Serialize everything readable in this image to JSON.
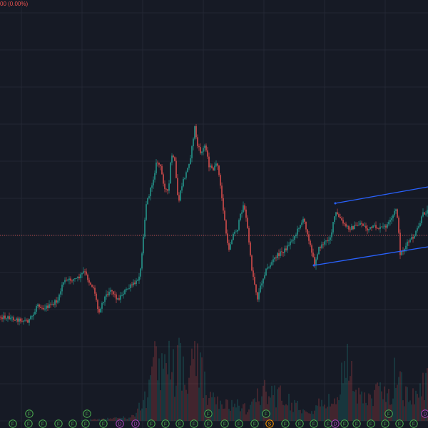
{
  "readout": {
    "change_text": "00 (0.00%)"
  },
  "colors": {
    "background": "#161a25",
    "grid": "#232733",
    "up": "#26a69a",
    "down": "#ef5350",
    "price_line": "#ef5350",
    "channel": "#2962ff",
    "marker_f": "#4caf50",
    "marker_d": "#ab47bc",
    "marker_s": "#ff9800"
  },
  "chart_data": {
    "type": "candlestick",
    "grid": true,
    "y_axis": "hidden",
    "x_axis": "hidden",
    "reference_line": {
      "style": "dotted",
      "description": "current price line"
    },
    "price_path_y": [
      [
        0,
        444
      ],
      [
        12,
        445
      ],
      [
        25,
        448
      ],
      [
        40,
        450
      ],
      [
        48,
        440
      ],
      [
        52,
        425
      ],
      [
        60,
        432
      ],
      [
        72,
        428
      ],
      [
        82,
        420
      ],
      [
        88,
        395
      ],
      [
        100,
        392
      ],
      [
        110,
        390
      ],
      [
        118,
        380
      ],
      [
        125,
        395
      ],
      [
        132,
        405
      ],
      [
        138,
        438
      ],
      [
        146,
        418
      ],
      [
        155,
        405
      ],
      [
        165,
        420
      ],
      [
        175,
        408
      ],
      [
        185,
        400
      ],
      [
        192,
        395
      ],
      [
        197,
        378
      ],
      [
        200,
        340
      ],
      [
        205,
        285
      ],
      [
        210,
        270
      ],
      [
        215,
        250
      ],
      [
        220,
        225
      ],
      [
        225,
        235
      ],
      [
        230,
        260
      ],
      [
        236,
        272
      ],
      [
        240,
        215
      ],
      [
        245,
        228
      ],
      [
        250,
        285
      ],
      [
        256,
        255
      ],
      [
        262,
        240
      ],
      [
        268,
        215
      ],
      [
        273,
        178
      ],
      [
        277,
        205
      ],
      [
        282,
        215
      ],
      [
        288,
        202
      ],
      [
        293,
        232
      ],
      [
        298,
        238
      ],
      [
        305,
        230
      ],
      [
        310,
        270
      ],
      [
        315,
        310
      ],
      [
        320,
        352
      ],
      [
        326,
        330
      ],
      [
        333,
        320
      ],
      [
        338,
        298
      ],
      [
        342,
        285
      ],
      [
        348,
        328
      ],
      [
        352,
        372
      ],
      [
        357,
        398
      ],
      [
        361,
        418
      ],
      [
        366,
        398
      ],
      [
        372,
        380
      ],
      [
        378,
        372
      ],
      [
        385,
        362
      ],
      [
        392,
        355
      ],
      [
        400,
        350
      ],
      [
        408,
        338
      ],
      [
        415,
        328
      ],
      [
        420,
        315
      ],
      [
        426,
        308
      ],
      [
        432,
        330
      ],
      [
        437,
        355
      ],
      [
        441,
        370
      ],
      [
        446,
        350
      ],
      [
        452,
        342
      ],
      [
        458,
        338
      ],
      [
        464,
        330
      ],
      [
        470,
        298
      ],
      [
        476,
        305
      ],
      [
        482,
        315
      ],
      [
        490,
        320
      ],
      [
        498,
        318
      ],
      [
        506,
        312
      ],
      [
        515,
        322
      ],
      [
        525,
        318
      ],
      [
        533,
        320
      ],
      [
        540,
        318
      ],
      [
        548,
        310
      ],
      [
        556,
        290
      ],
      [
        561,
        355
      ],
      [
        566,
        350
      ],
      [
        572,
        340
      ],
      [
        580,
        332
      ],
      [
        587,
        318
      ],
      [
        593,
        300
      ],
      [
        600,
        295
      ]
    ],
    "volume_profile": [
      [
        0,
        0
      ],
      [
        100,
        0
      ],
      [
        190,
        8
      ],
      [
        200,
        40
      ],
      [
        210,
        55
      ],
      [
        218,
        120
      ],
      [
        224,
        90
      ],
      [
        230,
        100
      ],
      [
        237,
        145
      ],
      [
        244,
        90
      ],
      [
        252,
        110
      ],
      [
        260,
        80
      ],
      [
        268,
        95
      ],
      [
        276,
        120
      ],
      [
        285,
        70
      ],
      [
        295,
        40
      ],
      [
        310,
        30
      ],
      [
        330,
        28
      ],
      [
        350,
        25
      ],
      [
        370,
        55
      ],
      [
        380,
        60
      ],
      [
        395,
        45
      ],
      [
        410,
        35
      ],
      [
        430,
        25
      ],
      [
        450,
        30
      ],
      [
        470,
        40
      ],
      [
        490,
        120
      ],
      [
        500,
        60
      ],
      [
        515,
        45
      ],
      [
        530,
        50
      ],
      [
        548,
        60
      ],
      [
        556,
        100
      ],
      [
        565,
        55
      ],
      [
        575,
        40
      ],
      [
        590,
        60
      ],
      [
        600,
        80
      ]
    ],
    "channel_lines": [
      {
        "from": [
          470,
          285
        ],
        "to": [
          600,
          262
        ]
      },
      {
        "from": [
          440,
          372
        ],
        "to": [
          600,
          346
        ]
      }
    ],
    "event_markers": [
      {
        "x": 41,
        "label": "F",
        "kind": "F"
      },
      {
        "x": 122,
        "label": "F",
        "kind": "F"
      },
      {
        "x": 292,
        "label": "F",
        "kind": "F"
      },
      {
        "x": 373,
        "label": "F",
        "kind": "F"
      },
      {
        "x": 545,
        "label": "F",
        "kind": "F"
      },
      {
        "x": 596,
        "label": "D",
        "kind": "D"
      },
      {
        "x": 18,
        "label": "F",
        "kind": "F"
      },
      {
        "x": 40,
        "label": "F",
        "kind": "F"
      },
      {
        "x": 60,
        "label": "F",
        "kind": "F"
      },
      {
        "x": 82,
        "label": "F",
        "kind": "F"
      },
      {
        "x": 102,
        "label": "F",
        "kind": "F"
      },
      {
        "x": 120,
        "label": "F",
        "kind": "F"
      },
      {
        "x": 145,
        "label": "F",
        "kind": "F"
      },
      {
        "x": 168,
        "label": "D",
        "kind": "D"
      },
      {
        "x": 190,
        "label": "D",
        "kind": "D"
      },
      {
        "x": 212,
        "label": "F",
        "kind": "F"
      },
      {
        "x": 232,
        "label": "F",
        "kind": "F"
      },
      {
        "x": 252,
        "label": "F",
        "kind": "F"
      },
      {
        "x": 272,
        "label": "F",
        "kind": "F"
      },
      {
        "x": 292,
        "label": "F",
        "kind": "F"
      },
      {
        "x": 315,
        "label": "F",
        "kind": "F"
      },
      {
        "x": 335,
        "label": "F",
        "kind": "F"
      },
      {
        "x": 357,
        "label": "F",
        "kind": "F"
      },
      {
        "x": 378,
        "label": "S",
        "kind": "S"
      },
      {
        "x": 400,
        "label": "F",
        "kind": "F"
      },
      {
        "x": 420,
        "label": "F",
        "kind": "F"
      },
      {
        "x": 440,
        "label": "F",
        "kind": "F"
      },
      {
        "x": 460,
        "label": "F",
        "kind": "F"
      },
      {
        "x": 470,
        "label": "D",
        "kind": "D"
      },
      {
        "x": 483,
        "label": "F",
        "kind": "F"
      },
      {
        "x": 500,
        "label": "F",
        "kind": "F"
      },
      {
        "x": 520,
        "label": "F",
        "kind": "F"
      },
      {
        "x": 540,
        "label": "F",
        "kind": "F"
      },
      {
        "x": 560,
        "label": "F",
        "kind": "F"
      },
      {
        "x": 580,
        "label": "F",
        "kind": "F"
      }
    ]
  }
}
